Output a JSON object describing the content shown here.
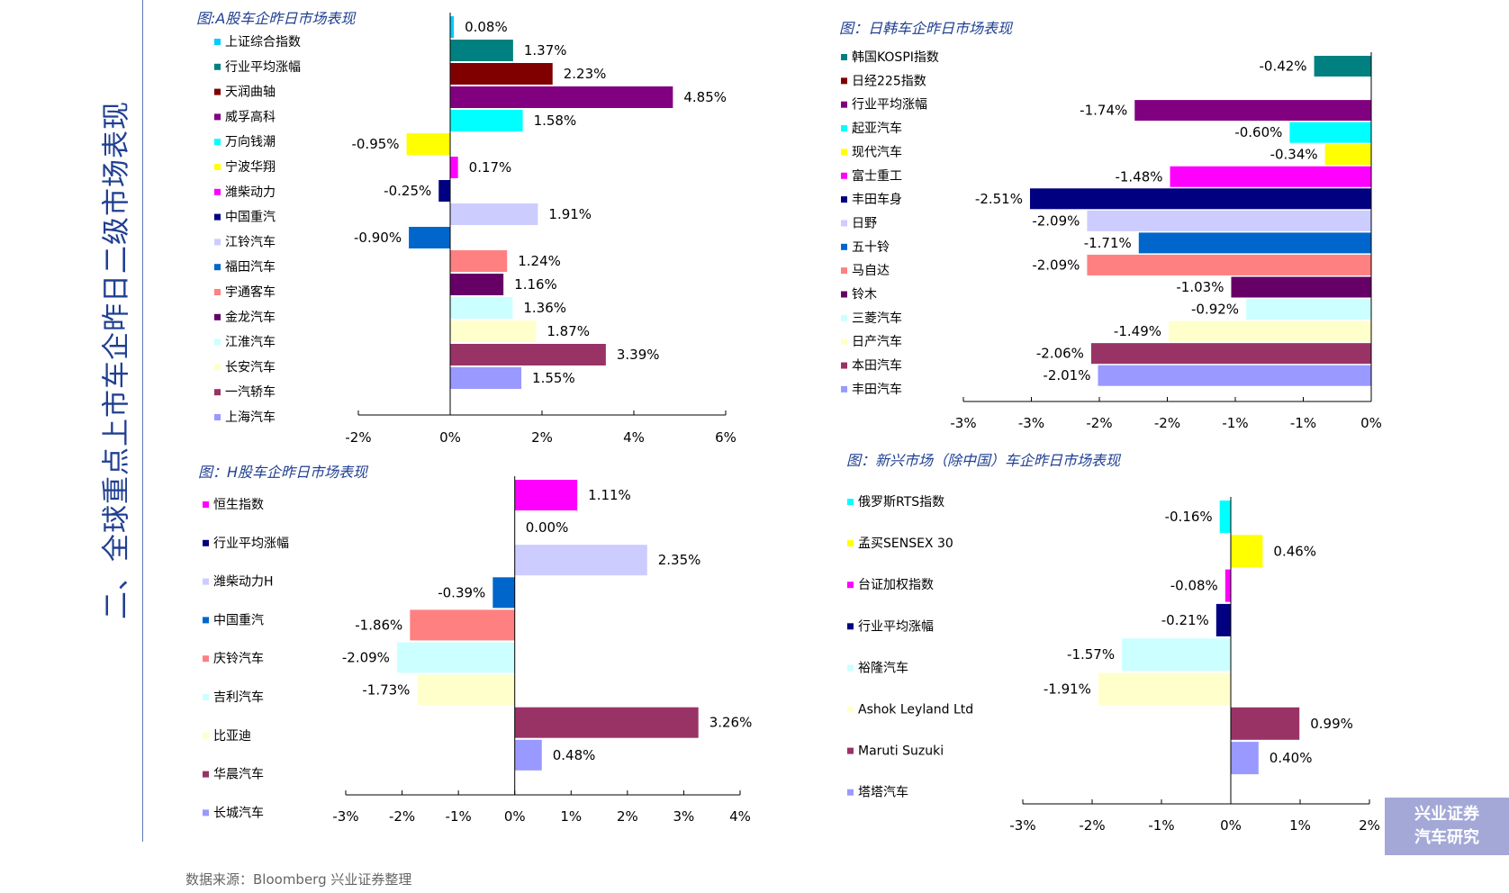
{
  "page": {
    "title": "二、全球重点上市车企昨日二级市场表现",
    "source": "数据来源：Bloomberg  兴业证券整理",
    "badge_line1": "兴业证券",
    "badge_line2": "汽车研究"
  },
  "chart_data": [
    {
      "type": "bar",
      "orientation": "horizontal",
      "title": "图:A股车企昨日市场表现",
      "xlim": [
        -2,
        6
      ],
      "ticks": [
        -2,
        0,
        2,
        4,
        6
      ],
      "tick_labels": [
        "-2%",
        "0%",
        "2%",
        "4%",
        "6%"
      ],
      "categories": [
        "上证综合指数",
        "行业平均涨幅",
        "天润曲轴",
        "威孚高科",
        "万向钱潮",
        "宁波华翔",
        "潍柴动力",
        "中国重汽",
        "江铃汽车",
        "福田汽车",
        "宇通客车",
        "金龙汽车",
        "江淮汽车",
        "长安汽车",
        "一汽轿车",
        "上海汽车"
      ],
      "values": [
        0.08,
        1.37,
        2.23,
        4.85,
        1.58,
        -0.95,
        0.17,
        -0.25,
        1.91,
        -0.9,
        1.24,
        1.16,
        1.36,
        1.87,
        3.39,
        1.55
      ],
      "labels": [
        "0.08%",
        "1.37%",
        "2.23%",
        "4.85%",
        "1.58%",
        "-0.95%",
        "0.17%",
        "-0.25%",
        "1.91%",
        "-0.90%",
        "1.24%",
        "1.16%",
        "1.36%",
        "1.87%",
        "3.39%",
        "1.55%"
      ],
      "colors": [
        "#00ccff",
        "#008080",
        "#800000",
        "#800080",
        "#00ffff",
        "#ffff00",
        "#ff00ff",
        "#000080",
        "#ccccff",
        "#0066cc",
        "#ff8080",
        "#660066",
        "#ccffff",
        "#ffffcc",
        "#993366",
        "#9999ff"
      ]
    },
    {
      "type": "bar",
      "orientation": "horizontal",
      "title": "图：日韩车企昨日市场表现",
      "xlim": [
        -3,
        0
      ],
      "ticks": [
        -3,
        -2.5,
        -2,
        -1.5,
        -1,
        -0.5,
        0
      ],
      "tick_labels": [
        "-3%",
        "-3%",
        "-2%",
        "-2%",
        "-1%",
        "-1%",
        "0%"
      ],
      "categories": [
        "韩国KOSPI指数",
        "日经225指数",
        "行业平均涨幅",
        "起亚汽车",
        "现代汽车",
        "富士重工",
        "丰田车身",
        "日野",
        "五十铃",
        "马自达",
        "铃木",
        "三菱汽车",
        "日产汽车",
        "本田汽车",
        "丰田汽车"
      ],
      "values": [
        -0.42,
        null,
        -1.74,
        -0.6,
        -0.34,
        -1.48,
        -2.51,
        -2.09,
        -1.71,
        -2.09,
        -1.03,
        -0.92,
        -1.49,
        -2.06,
        -2.01
      ],
      "labels": [
        "-0.42%",
        "",
        "-1.74%",
        "-0.60%",
        "-0.34%",
        "-1.48%",
        "-2.51%",
        "-2.09%",
        "-1.71%",
        "-2.09%",
        "-1.03%",
        "-0.92%",
        "-1.49%",
        "-2.06%",
        "-2.01%"
      ],
      "colors": [
        "#008080",
        "#800000",
        "#800080",
        "#00ffff",
        "#ffff00",
        "#ff00ff",
        "#000080",
        "#ccccff",
        "#0066cc",
        "#ff8080",
        "#660066",
        "#ccffff",
        "#ffffcc",
        "#993366",
        "#9999ff"
      ]
    },
    {
      "type": "bar",
      "orientation": "horizontal",
      "title": "图：H股车企昨日市场表现",
      "xlim": [
        -3,
        4
      ],
      "ticks": [
        -3,
        -2,
        -1,
        0,
        1,
        2,
        3,
        4
      ],
      "tick_labels": [
        "-3%",
        "-2%",
        "-1%",
        "0%",
        "1%",
        "2%",
        "3%",
        "4%"
      ],
      "categories": [
        "恒生指数",
        "行业平均涨幅",
        "潍柴动力H",
        "中国重汽",
        "庆铃汽车",
        "吉利汽车",
        "比亚迪",
        "华晨汽车",
        "长城汽车"
      ],
      "values": [
        1.11,
        0.0,
        2.35,
        -0.39,
        -1.86,
        -2.09,
        -1.73,
        3.26,
        0.48
      ],
      "labels": [
        "1.11%",
        "0.00%",
        "2.35%",
        "-0.39%",
        "-1.86%",
        "-2.09%",
        "-1.73%",
        "3.26%",
        "0.48%"
      ],
      "colors": [
        "#ff00ff",
        "#000080",
        "#ccccff",
        "#0066cc",
        "#ff8080",
        "#ccffff",
        "#ffffcc",
        "#993366",
        "#9999ff"
      ]
    },
    {
      "type": "bar",
      "orientation": "horizontal",
      "title": "图：新兴市场（除中国）车企昨日市场表现",
      "xlim": [
        -3,
        2
      ],
      "ticks": [
        -3,
        -2,
        -1,
        0,
        1,
        2
      ],
      "tick_labels": [
        "-3%",
        "-2%",
        "-1%",
        "0%",
        "1%",
        "2%"
      ],
      "categories": [
        "俄罗斯RTS指数",
        "孟买SENSEX 30",
        "台证加权指数",
        "行业平均涨幅",
        "裕隆汽车",
        "Ashok Leyland Ltd",
        "Maruti Suzuki",
        "塔塔汽车"
      ],
      "values": [
        -0.16,
        0.46,
        -0.08,
        -0.21,
        -1.57,
        -1.91,
        0.99,
        0.4
      ],
      "labels": [
        "-0.16%",
        "0.46%",
        "-0.08%",
        "-0.21%",
        "-1.57%",
        "-1.91%",
        "0.99%",
        "0.40%"
      ],
      "colors": [
        "#00ffff",
        "#ffff00",
        "#ff00ff",
        "#000080",
        "#ccffff",
        "#ffffcc",
        "#993366",
        "#9999ff"
      ]
    }
  ]
}
